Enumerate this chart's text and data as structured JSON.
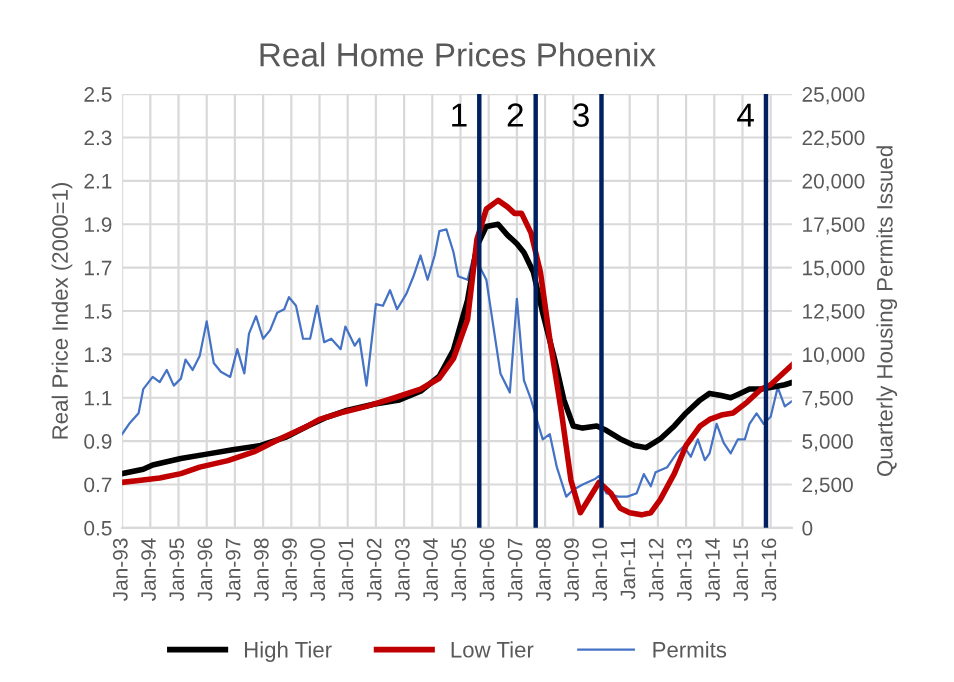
{
  "chart_data": {
    "type": "line",
    "title": "Real Home Prices Phoenix",
    "ylabel": "Real Price Index (2000=1)",
    "y2label": "Quarterly Housing Permits Issued",
    "series": [
      {
        "name": "High Tier",
        "color": "#000000",
        "x": [
          "1993-01",
          "1993-10",
          "1994-02",
          "1995-02",
          "1996-01",
          "1996-12",
          "1997-12",
          "1998-11",
          "1999-08",
          "2000-04",
          "2000-12",
          "2001-12",
          "2002-11",
          "2003-08",
          "2004-04",
          "2004-10",
          "2005-04",
          "2005-08",
          "2005-12",
          "2006-05",
          "2006-09",
          "2007-01",
          "2007-04",
          "2007-08",
          "2007-12",
          "2008-05",
          "2008-09",
          "2009-01",
          "2009-05",
          "2009-11",
          "2010-03",
          "2010-09",
          "2011-03",
          "2011-08",
          "2012-02",
          "2012-08",
          "2013-01",
          "2013-07",
          "2013-11",
          "2014-04",
          "2014-08",
          "2014-12",
          "2015-04",
          "2015-09",
          "2016-02",
          "2016-07",
          "2016-10"
        ],
        "values": [
          0.75,
          0.77,
          0.79,
          0.82,
          0.84,
          0.86,
          0.88,
          0.92,
          0.97,
          1.01,
          1.04,
          1.07,
          1.09,
          1.13,
          1.2,
          1.32,
          1.55,
          1.8,
          1.89,
          1.9,
          1.85,
          1.81,
          1.77,
          1.68,
          1.49,
          1.28,
          1.09,
          0.97,
          0.96,
          0.97,
          0.95,
          0.91,
          0.88,
          0.87,
          0.91,
          0.97,
          1.03,
          1.09,
          1.12,
          1.11,
          1.1,
          1.12,
          1.14,
          1.14,
          1.15,
          1.16,
          1.17
        ]
      },
      {
        "name": "Low Tier",
        "color": "#c00000",
        "x": [
          "1993-01",
          "1993-09",
          "1994-05",
          "1995-02",
          "1995-10",
          "1996-10",
          "1997-09",
          "1998-08",
          "1999-08",
          "2000-01",
          "2000-10",
          "2001-09",
          "2002-09",
          "2003-08",
          "2004-04",
          "2004-10",
          "2005-04",
          "2005-08",
          "2005-12",
          "2006-05",
          "2006-09",
          "2006-12",
          "2007-03",
          "2007-07",
          "2007-11",
          "2008-03",
          "2008-08",
          "2008-12",
          "2009-04",
          "2009-08",
          "2009-12",
          "2010-05",
          "2010-09",
          "2011-01",
          "2011-06",
          "2011-10",
          "2012-02",
          "2012-08",
          "2013-01",
          "2013-07",
          "2013-11",
          "2014-04",
          "2014-09",
          "2015-03",
          "2015-09",
          "2016-01",
          "2016-05",
          "2016-10"
        ],
        "values": [
          0.71,
          0.72,
          0.73,
          0.75,
          0.78,
          0.81,
          0.85,
          0.91,
          0.97,
          1.0,
          1.03,
          1.06,
          1.1,
          1.14,
          1.19,
          1.28,
          1.46,
          1.83,
          1.97,
          2.01,
          1.98,
          1.95,
          1.95,
          1.86,
          1.68,
          1.37,
          1.03,
          0.72,
          0.57,
          0.64,
          0.71,
          0.66,
          0.59,
          0.57,
          0.56,
          0.57,
          0.63,
          0.75,
          0.88,
          0.97,
          1.0,
          1.02,
          1.03,
          1.08,
          1.14,
          1.16,
          1.2,
          1.25
        ]
      },
      {
        "name": "Permits",
        "color": "#4472c4",
        "axis": "y2",
        "x": [
          "1993-01",
          "1993-04",
          "1993-08",
          "1993-10",
          "1994-02",
          "1994-05",
          "1994-08",
          "1994-11",
          "1995-02",
          "1995-04",
          "1995-07",
          "1995-10",
          "1996-01",
          "1996-04",
          "1996-07",
          "1996-11",
          "1997-02",
          "1997-05",
          "1997-07",
          "1997-10",
          "1998-01",
          "1998-04",
          "1998-07",
          "1998-10",
          "1998-12",
          "1999-03",
          "1999-06",
          "1999-09",
          "1999-12",
          "2000-03",
          "2000-06",
          "2000-10",
          "2000-12",
          "2001-04",
          "2001-06",
          "2001-09",
          "2002-01",
          "2002-04",
          "2002-07",
          "2002-10",
          "2003-02",
          "2003-05",
          "2003-08",
          "2003-11",
          "2004-02",
          "2004-04",
          "2004-07",
          "2004-10",
          "2004-12",
          "2005-04",
          "2005-07",
          "2005-09",
          "2005-12",
          "2006-03",
          "2006-06",
          "2006-10",
          "2007-01",
          "2007-04",
          "2007-07",
          "2007-10",
          "2007-12",
          "2008-03",
          "2008-06",
          "2008-10",
          "2009-01",
          "2009-05",
          "2009-10",
          "2009-12",
          "2010-03",
          "2010-08",
          "2010-12",
          "2011-04",
          "2011-07",
          "2011-10",
          "2011-12",
          "2012-05",
          "2012-09",
          "2012-12",
          "2013-03",
          "2013-06",
          "2013-09",
          "2013-11",
          "2014-02",
          "2014-05",
          "2014-08",
          "2014-11",
          "2015-02",
          "2015-04",
          "2015-07",
          "2015-10",
          "2016-01",
          "2016-04",
          "2016-07",
          "2016-10"
        ],
        "values": [
          5400,
          6000,
          6600,
          8000,
          8700,
          8400,
          9100,
          8200,
          8600,
          9700,
          9100,
          9900,
          11900,
          9500,
          9000,
          8700,
          10300,
          8900,
          11200,
          12200,
          10900,
          11400,
          12400,
          12600,
          13300,
          12800,
          10900,
          10900,
          12800,
          10700,
          10900,
          10300,
          11600,
          10500,
          10900,
          8200,
          12900,
          12800,
          13700,
          12600,
          13500,
          14500,
          15700,
          14300,
          15700,
          17100,
          17200,
          15900,
          14500,
          14300,
          15900,
          15100,
          14300,
          11600,
          8900,
          7800,
          13200,
          8500,
          7400,
          6000,
          5100,
          5400,
          3500,
          1800,
          2200,
          2500,
          2800,
          3000,
          2000,
          1800,
          1800,
          2000,
          3100,
          2400,
          3200,
          3500,
          4300,
          4700,
          4100,
          5100,
          3900,
          4300,
          6000,
          4900,
          4300,
          5100,
          5100,
          6000,
          6600,
          6000,
          6400,
          8100,
          7000,
          7300
        ]
      }
    ],
    "xlim": [
      "1993-01",
      "2016-10"
    ],
    "xticks": [
      {
        "value": "1993-01",
        "label": "Jan-93"
      },
      {
        "value": "1994-01",
        "label": "Jan-94"
      },
      {
        "value": "1995-01",
        "label": "Jan-95"
      },
      {
        "value": "1996-01",
        "label": "Jan-96"
      },
      {
        "value": "1997-01",
        "label": "Jan-97"
      },
      {
        "value": "1998-01",
        "label": "Jan-98"
      },
      {
        "value": "1999-01",
        "label": "Jan-99"
      },
      {
        "value": "2000-01",
        "label": "Jan-00"
      },
      {
        "value": "2001-01",
        "label": "Jan-01"
      },
      {
        "value": "2002-01",
        "label": "Jan-02"
      },
      {
        "value": "2003-01",
        "label": "Jan-03"
      },
      {
        "value": "2004-01",
        "label": "Jan-04"
      },
      {
        "value": "2005-01",
        "label": "Jan-05"
      },
      {
        "value": "2006-01",
        "label": "Jan-06"
      },
      {
        "value": "2007-01",
        "label": "Jan-07"
      },
      {
        "value": "2008-01",
        "label": "Jan-08"
      },
      {
        "value": "2009-01",
        "label": "Jan-09"
      },
      {
        "value": "2010-01",
        "label": "Jan-10"
      },
      {
        "value": "2011-01",
        "label": "Jan-11"
      },
      {
        "value": "2012-01",
        "label": "Jan-12"
      },
      {
        "value": "2013-01",
        "label": "Jan-13"
      },
      {
        "value": "2014-01",
        "label": "Jan-14"
      },
      {
        "value": "2015-01",
        "label": "Jan-15"
      },
      {
        "value": "2016-01",
        "label": "Jan-16"
      }
    ],
    "ylim": [
      0.5,
      2.5
    ],
    "yticks": [
      0.5,
      0.7,
      0.9,
      1.1,
      1.3,
      1.5,
      1.7,
      1.9,
      2.1,
      2.3,
      2.5
    ],
    "y2lim": [
      0,
      25000
    ],
    "y2ticks": [
      0,
      {
        "value": 2500,
        "label": "2,500"
      },
      {
        "value": 5000,
        "label": "5,000"
      },
      {
        "value": 7500,
        "label": "7,500"
      },
      {
        "value": 10000,
        "label": "10,000"
      },
      {
        "value": 12500,
        "label": "12,500"
      },
      {
        "value": 15000,
        "label": "15,000"
      },
      {
        "value": 17500,
        "label": "17,500"
      },
      {
        "value": 20000,
        "label": "20,000"
      },
      {
        "value": 22500,
        "label": "22,500"
      },
      {
        "value": 25000,
        "label": "25,000"
      }
    ],
    "ref_lines": [
      {
        "axis": "x",
        "value": "2005-09",
        "color": "#002060"
      },
      {
        "axis": "x",
        "value": "2007-09",
        "color": "#002060"
      },
      {
        "axis": "x",
        "value": "2010-01",
        "color": "#002060"
      },
      {
        "axis": "x",
        "value": "2015-11",
        "color": "#002060"
      }
    ],
    "annotations": [
      {
        "text": "1",
        "x": "2005-09",
        "y": 2.5
      },
      {
        "text": "2",
        "x": "2007-09",
        "y": 2.5
      },
      {
        "text": "3",
        "x": "2010-01",
        "y": 2.5
      },
      {
        "text": "4",
        "x": "2015-11",
        "y": 2.5
      }
    ],
    "grid": true,
    "legend": "bottom",
    "marker": "none",
    "line_style": "solid"
  }
}
